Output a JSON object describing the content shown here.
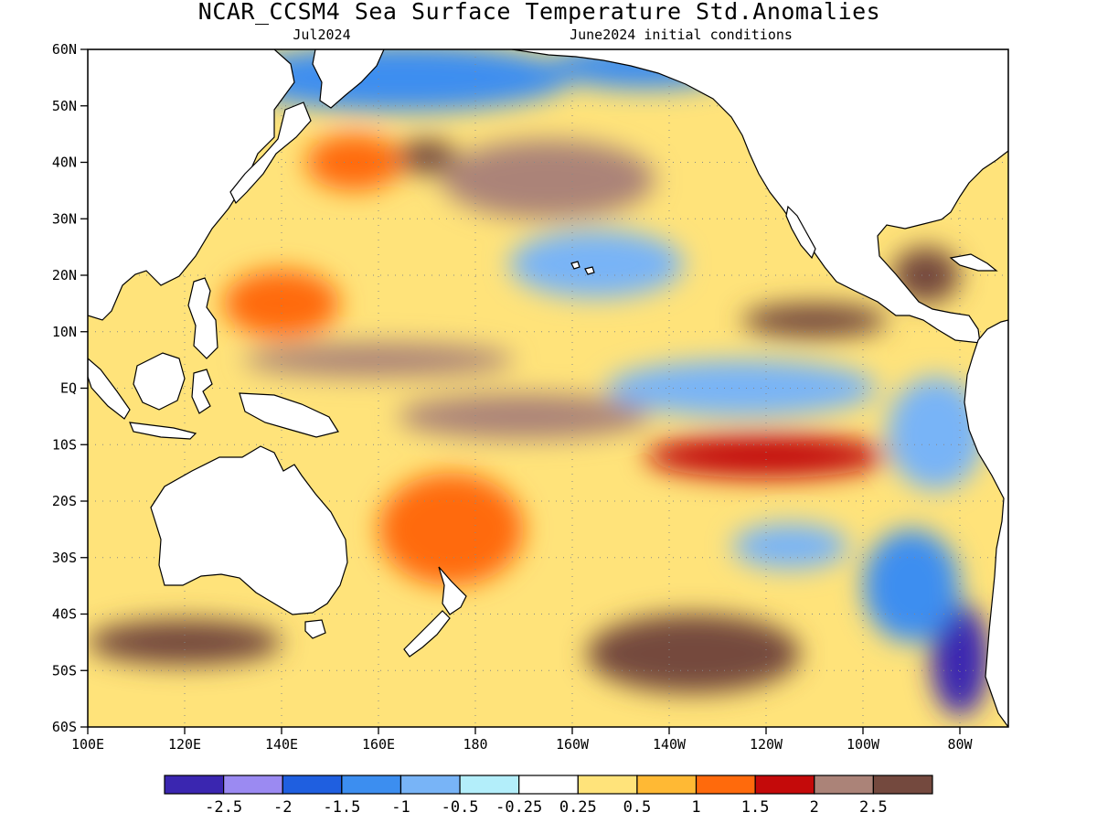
{
  "map": {
    "title": "NCAR_CCSM4 Sea Surface Temperature Std.Anomalies",
    "valid_label": "Jul2024",
    "init_label": "June2024 initial conditions",
    "lon_range": [
      100,
      290
    ],
    "lat_range": [
      -60,
      60
    ],
    "lat_ticks": [
      {
        "value": 60,
        "label": "60N"
      },
      {
        "value": 50,
        "label": "50N"
      },
      {
        "value": 40,
        "label": "40N"
      },
      {
        "value": 30,
        "label": "30N"
      },
      {
        "value": 20,
        "label": "20N"
      },
      {
        "value": 10,
        "label": "10N"
      },
      {
        "value": 0,
        "label": "EQ"
      },
      {
        "value": -10,
        "label": "10S"
      },
      {
        "value": -20,
        "label": "20S"
      },
      {
        "value": -30,
        "label": "30S"
      },
      {
        "value": -40,
        "label": "40S"
      },
      {
        "value": -50,
        "label": "50S"
      },
      {
        "value": -60,
        "label": "60S"
      }
    ],
    "lon_ticks": [
      {
        "value": 100,
        "label": "100E"
      },
      {
        "value": 120,
        "label": "120E"
      },
      {
        "value": 140,
        "label": "140E"
      },
      {
        "value": 160,
        "label": "160E"
      },
      {
        "value": 180,
        "label": "180"
      },
      {
        "value": 200,
        "label": "160W"
      },
      {
        "value": 220,
        "label": "140W"
      },
      {
        "value": 240,
        "label": "120W"
      },
      {
        "value": 260,
        "label": "100W"
      },
      {
        "value": 280,
        "label": "80W"
      }
    ],
    "grid": true
  },
  "colorbar": {
    "colors": [
      "#3a26b0",
      "#9b8af2",
      "#1f5fe0",
      "#3c8ef0",
      "#78b4f7",
      "#b3eefa",
      "#ffffff",
      "#ffe37a",
      "#ffb934",
      "#ff6a0c",
      "#c40a0a",
      "#ab8378",
      "#74493e"
    ],
    "labels": [
      "-2.5",
      "-2",
      "-1.5",
      "-1",
      "-0.5",
      "-0.25",
      "0.25",
      "0.5",
      "1",
      "1.5",
      "2",
      "2.5"
    ]
  },
  "anomaly_features": [
    {
      "lon": 155,
      "lat": 40,
      "rx": 10,
      "ry": 5,
      "value": 1.5
    },
    {
      "lon": 195,
      "lat": 37,
      "rx": 22,
      "ry": 7,
      "value": 2.2
    },
    {
      "lon": 170,
      "lat": 41,
      "rx": 6,
      "ry": 3,
      "value": 2.6
    },
    {
      "lon": 205,
      "lat": 22,
      "rx": 18,
      "ry": 6,
      "value": -0.8
    },
    {
      "lon": 165,
      "lat": 55,
      "rx": 35,
      "ry": 6,
      "value": -1.2
    },
    {
      "lon": 215,
      "lat": 57,
      "rx": 20,
      "ry": 4,
      "value": -1.0
    },
    {
      "lon": 250,
      "lat": 12,
      "rx": 15,
      "ry": 3,
      "value": 2.6
    },
    {
      "lon": 160,
      "lat": 5,
      "rx": 28,
      "ry": 3,
      "value": 2.4
    },
    {
      "lon": 190,
      "lat": -5,
      "rx": 26,
      "ry": 4,
      "value": 2.2
    },
    {
      "lon": 240,
      "lat": -12,
      "rx": 25,
      "ry": 4,
      "value": 1.8
    },
    {
      "lon": 235,
      "lat": 0,
      "rx": 28,
      "ry": 5,
      "value": -0.8
    },
    {
      "lon": 275,
      "lat": -8,
      "rx": 10,
      "ry": 10,
      "value": -0.9
    },
    {
      "lon": 245,
      "lat": -28,
      "rx": 12,
      "ry": 4,
      "value": -0.7
    },
    {
      "lon": 225,
      "lat": -47,
      "rx": 22,
      "ry": 7,
      "value": 2.6
    },
    {
      "lon": 120,
      "lat": -45,
      "rx": 20,
      "ry": 4,
      "value": 2.6
    },
    {
      "lon": 280,
      "lat": -48,
      "rx": 6,
      "ry": 10,
      "value": -2.6
    },
    {
      "lon": 270,
      "lat": -35,
      "rx": 10,
      "ry": 10,
      "value": -1.2
    },
    {
      "lon": 273,
      "lat": 20,
      "rx": 7,
      "ry": 5,
      "value": 2.6
    },
    {
      "lon": 175,
      "lat": -25,
      "rx": 15,
      "ry": 10,
      "value": 1.2
    },
    {
      "lon": 140,
      "lat": 15,
      "rx": 12,
      "ry": 6,
      "value": 1.2
    }
  ]
}
